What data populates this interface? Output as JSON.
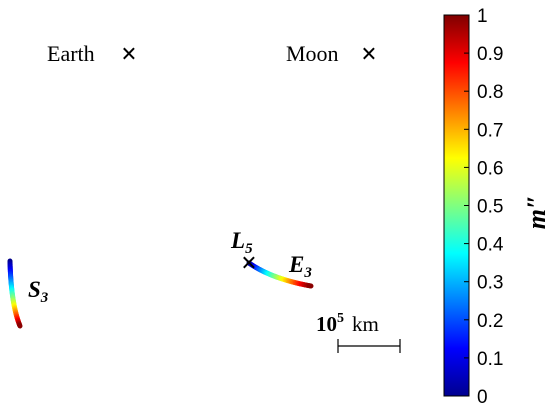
{
  "chart_data": {
    "type": "scatter",
    "title": "",
    "bodies": [
      {
        "name": "Earth",
        "marker": "×"
      },
      {
        "name": "Moon",
        "marker": "×"
      },
      {
        "name": "L",
        "subscript": "5",
        "marker": "×"
      }
    ],
    "trajectories": [
      {
        "name": "S",
        "subscript": "3",
        "m_start": 0.0,
        "m_end": 1.0
      },
      {
        "name": "E",
        "subscript": "3",
        "m_start": 0.0,
        "m_end": 1.0
      }
    ],
    "scale_bar": {
      "base": "10",
      "exponent": "5",
      "unit": "km"
    },
    "colorbar": {
      "label": "m″",
      "colormap": "jet",
      "range": [
        0,
        1
      ],
      "ticks": [
        "0",
        "0.1",
        "0.2",
        "0.3",
        "0.4",
        "0.5",
        "0.6",
        "0.7",
        "0.8",
        "0.9",
        "1"
      ]
    }
  },
  "colors": {
    "jet": [
      "#00008f",
      "#0000ff",
      "#00ffff",
      "#ffff00",
      "#ff0000",
      "#800000"
    ],
    "marker": "#000000"
  }
}
